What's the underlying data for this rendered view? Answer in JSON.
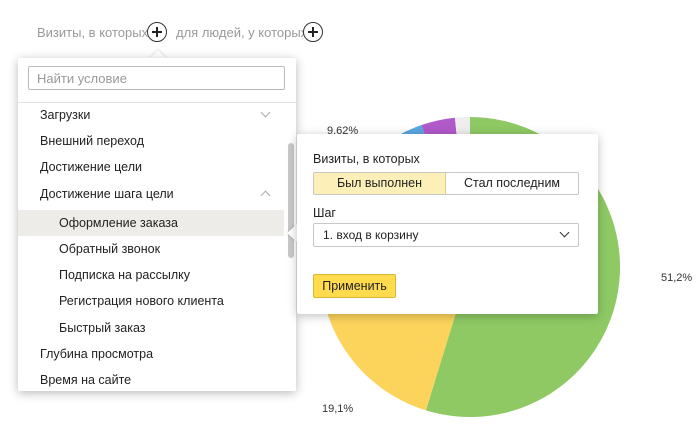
{
  "filters": {
    "visits_label": "Визиты, в которых",
    "people_label": "для людей, у которых"
  },
  "search": {
    "placeholder": "Найти условие",
    "value": ""
  },
  "conditions": [
    {
      "label": "Загрузки",
      "level": 0,
      "expandable": true,
      "expanded": false
    },
    {
      "label": "Внешний переход",
      "level": 0
    },
    {
      "label": "Достижение цели",
      "level": 0
    },
    {
      "label": "Достижение шага цели",
      "level": 0,
      "expandable": true,
      "expanded": true
    },
    {
      "label": "Оформление заказа",
      "level": 1,
      "selected": true
    },
    {
      "label": "Обратный звонок",
      "level": 1
    },
    {
      "label": "Подписка на рассылку",
      "level": 1
    },
    {
      "label": "Регистрация нового клиента",
      "level": 1
    },
    {
      "label": "Быстрый заказ",
      "level": 1
    },
    {
      "label": "Глубина просмотра",
      "level": 0
    },
    {
      "label": "Время на сайте",
      "level": 0
    }
  ],
  "details": {
    "title": "Визиты, в которых",
    "options": [
      "Был выполнен",
      "Стал последним"
    ],
    "selected_option": "Был выполнен",
    "step_label": "Шаг",
    "step_value": "1. вход в корзину",
    "apply_label": "Применить"
  },
  "chart_data": {
    "type": "pie",
    "slices": [
      {
        "label": "51,2%",
        "value": 51.2,
        "color": "#8ec964"
      },
      {
        "label": "19,1%",
        "value": 19.1,
        "color": "#fcd45c"
      },
      {
        "label": "",
        "value": 8.7,
        "color": "#ffffff"
      },
      {
        "label": "9,62%",
        "value": 9.62,
        "color": "#5aa6e0"
      },
      {
        "label": "",
        "value": 3.4,
        "color": "#b05ac9"
      },
      {
        "label": "",
        "value": 1.5,
        "color": "#eeeeee"
      }
    ]
  },
  "colors": {
    "accent_yellow": "#ffdb4d",
    "selected_segment": "#fdefb8",
    "pie_green": "#8ec964",
    "pie_yellow": "#fcd45c"
  }
}
